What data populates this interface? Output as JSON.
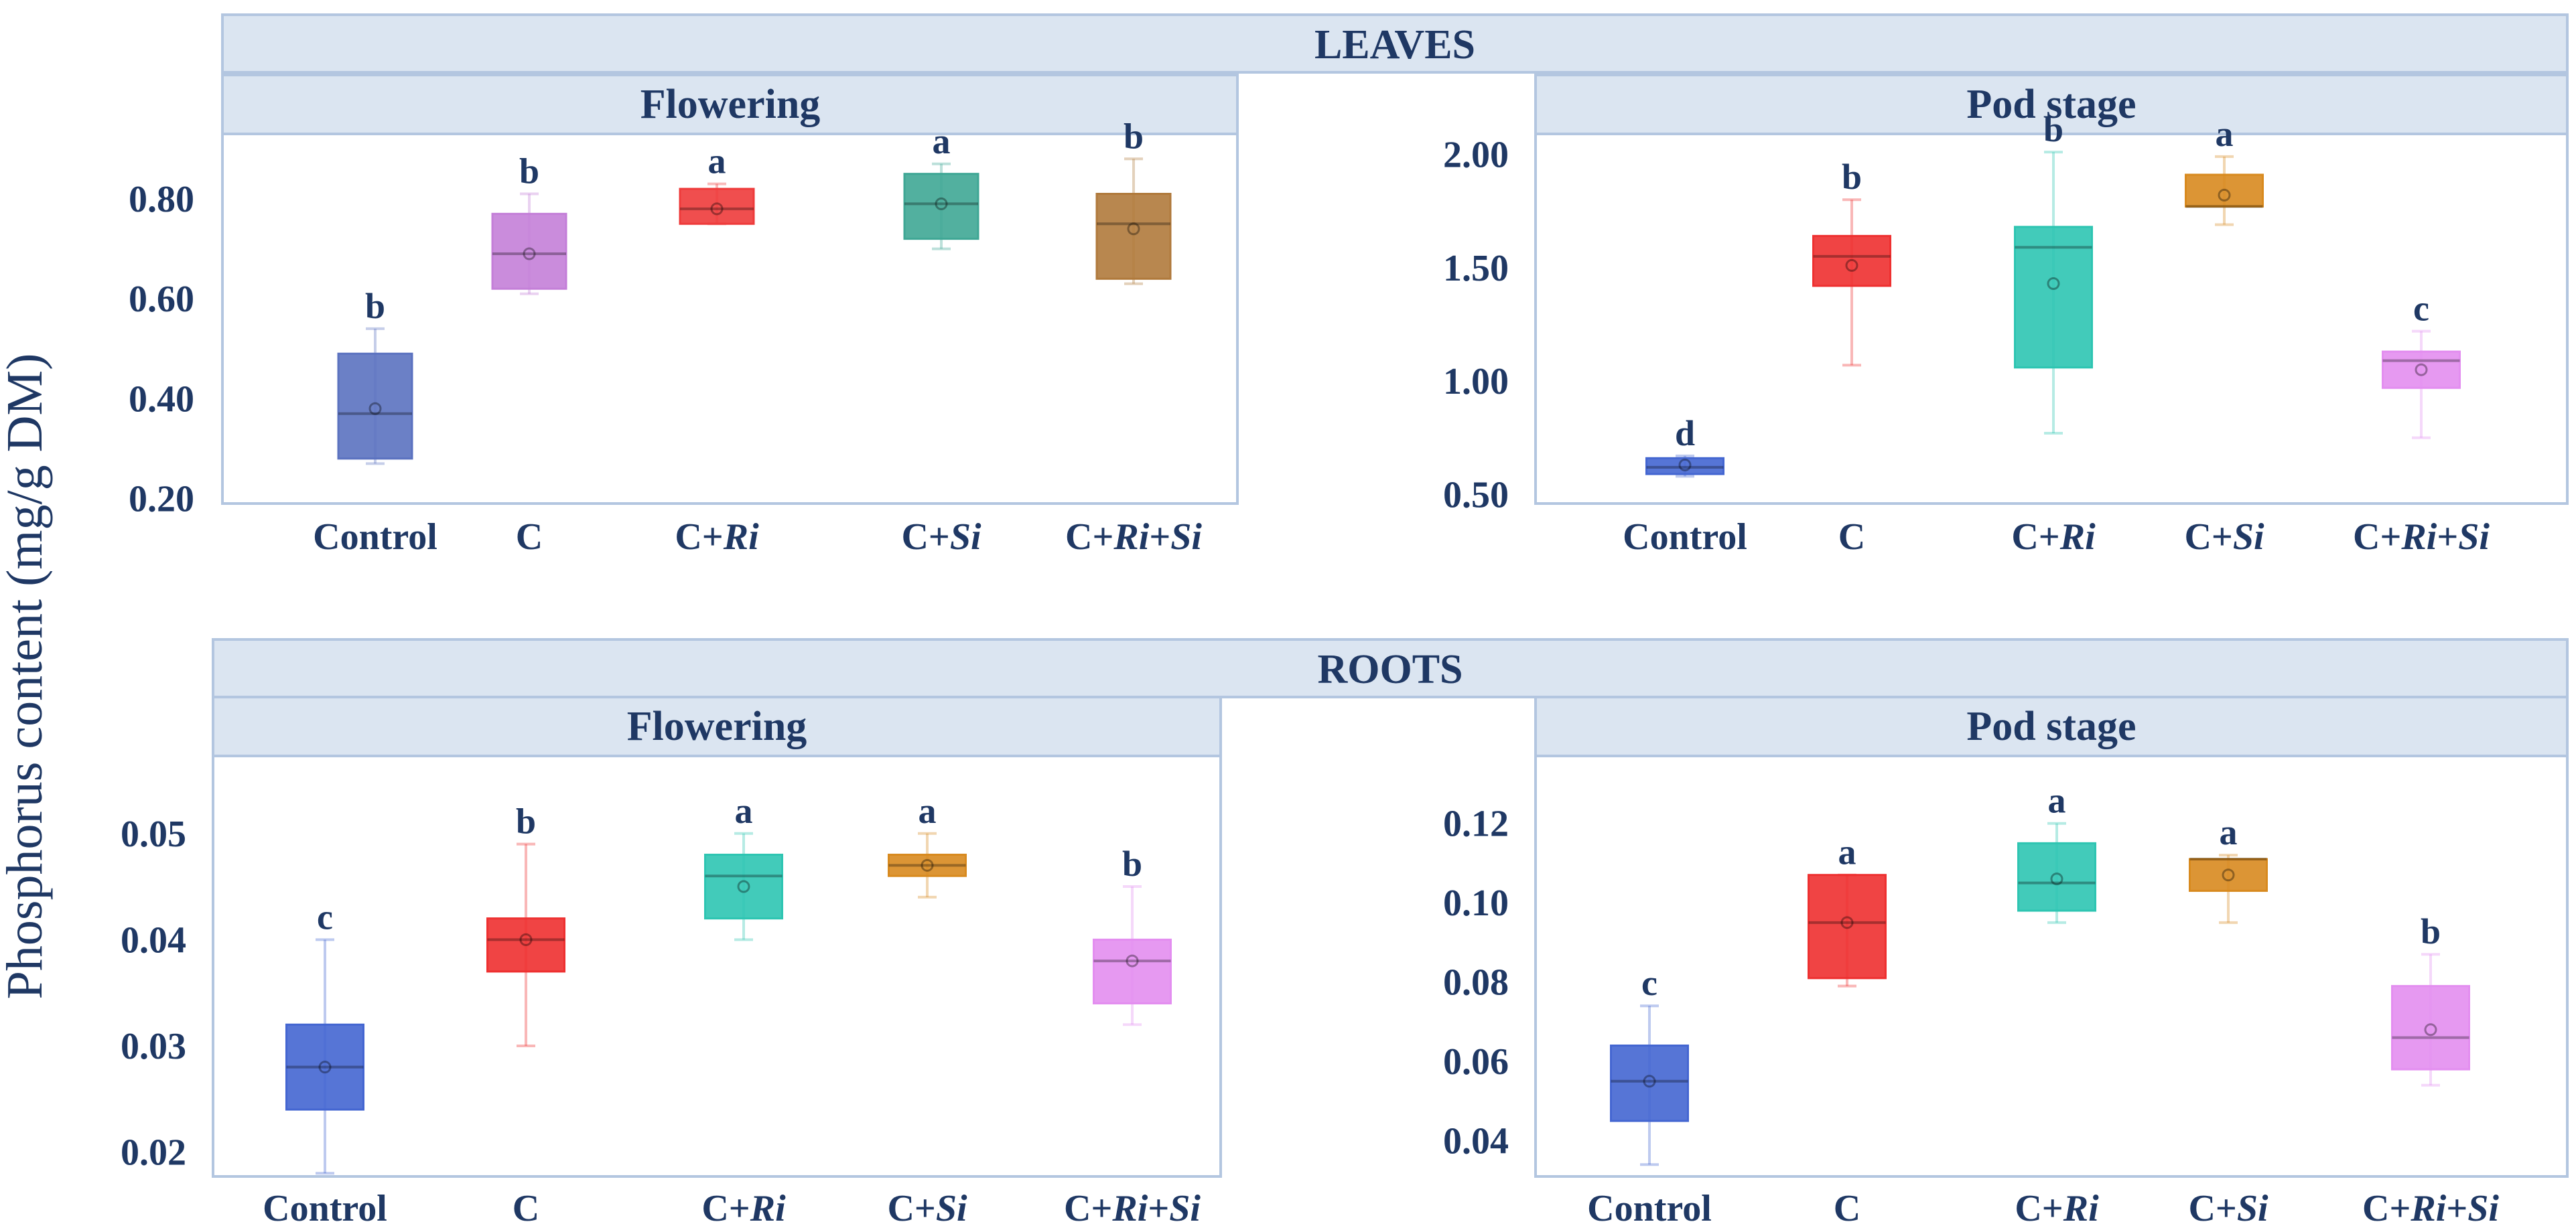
{
  "figure": {
    "y_axis_label": "Phosphorus content (mg/g DM)",
    "sections": [
      {
        "title": "LEAVES",
        "subpanels": [
          "Flowering",
          "Pod stage"
        ]
      },
      {
        "title": "ROOTS",
        "subpanels": [
          "Flowering",
          "Pod stage"
        ]
      }
    ]
  },
  "chart_data": [
    {
      "type": "box",
      "section": "LEAVES",
      "title": "Flowering",
      "categories": [
        "Control",
        "C",
        "C+Ri",
        "C+Si",
        "C+Ri+Si"
      ],
      "yticks": [
        "0.20",
        "0.40",
        "0.60",
        "0.80"
      ],
      "ylim": [
        0.19,
        0.93
      ],
      "boxes": [
        {
          "min": 0.27,
          "q1": 0.28,
          "median": 0.37,
          "q3": 0.49,
          "max": 0.54,
          "mean": 0.38,
          "letter": "b",
          "color": "#5b72c0"
        },
        {
          "min": 0.61,
          "q1": 0.62,
          "median": 0.69,
          "q3": 0.77,
          "max": 0.81,
          "mean": 0.69,
          "letter": "b",
          "color": "#c47fd8"
        },
        {
          "min": 0.75,
          "q1": 0.75,
          "median": 0.78,
          "q3": 0.82,
          "max": 0.83,
          "mean": 0.78,
          "letter": "a",
          "color": "#ee3b3b"
        },
        {
          "min": 0.7,
          "q1": 0.72,
          "median": 0.79,
          "q3": 0.85,
          "max": 0.87,
          "mean": 0.79,
          "letter": "a",
          "color": "#3fa795"
        },
        {
          "min": 0.63,
          "q1": 0.64,
          "median": 0.75,
          "q3": 0.81,
          "max": 0.88,
          "mean": 0.74,
          "letter": "b",
          "color": "#b07a3c"
        }
      ]
    },
    {
      "type": "box",
      "section": "LEAVES",
      "title": "Pod stage",
      "categories": [
        "Control",
        "C",
        "C+Ri",
        "C+Si",
        "C+Ri+Si"
      ],
      "yticks": [
        "0.50",
        "1.00",
        "1.50",
        "2.00"
      ],
      "ylim": [
        0.46,
        2.09
      ],
      "boxes": [
        {
          "min": 0.58,
          "q1": 0.59,
          "median": 0.62,
          "q3": 0.66,
          "max": 0.67,
          "mean": 0.63,
          "letter": "d",
          "color": "#4466d1"
        },
        {
          "min": 1.07,
          "q1": 1.42,
          "median": 1.55,
          "q3": 1.64,
          "max": 1.8,
          "mean": 1.51,
          "letter": "b",
          "color": "#ee3030"
        },
        {
          "min": 0.77,
          "q1": 1.06,
          "median": 1.59,
          "q3": 1.68,
          "max": 2.01,
          "mean": 1.43,
          "letter": "b",
          "color": "#2ec5b2"
        },
        {
          "min": 1.69,
          "q1": 1.77,
          "median": 1.77,
          "q3": 1.91,
          "max": 1.99,
          "mean": 1.82,
          "letter": "a",
          "color": "#d88a1f"
        },
        {
          "min": 0.75,
          "q1": 0.97,
          "median": 1.09,
          "q3": 1.13,
          "max": 1.22,
          "mean": 1.05,
          "letter": "c",
          "color": "#e38ef0"
        }
      ]
    },
    {
      "type": "box",
      "section": "ROOTS",
      "title": "Flowering",
      "categories": [
        "Control",
        "C",
        "C+Ri",
        "C+Si",
        "C+Ri+Si"
      ],
      "yticks": [
        "0.02",
        "0.03",
        "0.04",
        "0.05"
      ],
      "ylim": [
        0.0177,
        0.0573
      ],
      "boxes": [
        {
          "min": 0.018,
          "q1": 0.024,
          "median": 0.028,
          "q3": 0.032,
          "max": 0.04,
          "mean": 0.028,
          "letter": "c",
          "color": "#4466d1"
        },
        {
          "min": 0.03,
          "q1": 0.037,
          "median": 0.04,
          "q3": 0.042,
          "max": 0.049,
          "mean": 0.04,
          "letter": "b",
          "color": "#ee3030"
        },
        {
          "min": 0.04,
          "q1": 0.042,
          "median": 0.046,
          "q3": 0.048,
          "max": 0.05,
          "mean": 0.045,
          "letter": "a",
          "color": "#2ec5b2"
        },
        {
          "min": 0.044,
          "q1": 0.046,
          "median": 0.047,
          "q3": 0.048,
          "max": 0.05,
          "mean": 0.047,
          "letter": "a",
          "color": "#d88a1f"
        },
        {
          "min": 0.032,
          "q1": 0.034,
          "median": 0.038,
          "q3": 0.04,
          "max": 0.045,
          "mean": 0.038,
          "letter": "b",
          "color": "#e38ef0"
        }
      ]
    },
    {
      "type": "box",
      "section": "ROOTS",
      "title": "Pod stage",
      "categories": [
        "Control",
        "C",
        "C+Ri",
        "C+Si",
        "C+Ri+Si"
      ],
      "yticks": [
        "0.04",
        "0.06",
        "0.08",
        "0.10",
        "0.12"
      ],
      "ylim": [
        0.031,
        0.137
      ],
      "boxes": [
        {
          "min": 0.034,
          "q1": 0.045,
          "median": 0.055,
          "q3": 0.064,
          "max": 0.074,
          "mean": 0.055,
          "letter": "c",
          "color": "#4466d1"
        },
        {
          "min": 0.079,
          "q1": 0.081,
          "median": 0.095,
          "q3": 0.107,
          "max": 0.107,
          "mean": 0.095,
          "letter": "a",
          "color": "#ee3030"
        },
        {
          "min": 0.095,
          "q1": 0.098,
          "median": 0.105,
          "q3": 0.115,
          "max": 0.12,
          "mean": 0.106,
          "letter": "a",
          "color": "#2ec5b2"
        },
        {
          "min": 0.095,
          "q1": 0.103,
          "median": 0.111,
          "q3": 0.111,
          "max": 0.112,
          "mean": 0.107,
          "letter": "a",
          "color": "#d88a1f"
        },
        {
          "min": 0.054,
          "q1": 0.058,
          "median": 0.066,
          "q3": 0.079,
          "max": 0.087,
          "mean": 0.068,
          "letter": "b",
          "color": "#e38ef0"
        }
      ]
    }
  ]
}
